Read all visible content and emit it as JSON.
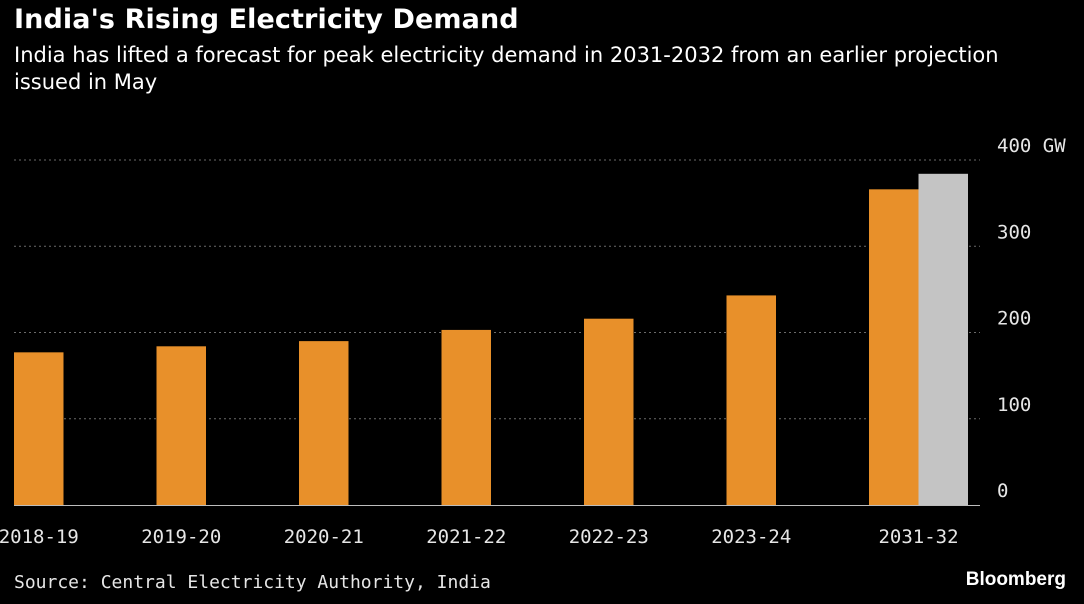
{
  "header": {
    "title": "India's Rising Electricity Demand",
    "subtitle": "India has lifted a forecast for peak electricity demand in 2031-2032 from an earlier projection issued in May"
  },
  "footer": {
    "source": "Source: Central Electricity Authority, India",
    "brand": "Bloomberg"
  },
  "chart_data": {
    "type": "bar",
    "title": "India's Rising Electricity Demand",
    "subtitle": "India has lifted a forecast for peak electricity demand in 2031-2032 from an earlier projection issued in May",
    "xlabel": "",
    "ylabel": "",
    "unit": "GW",
    "ylim": [
      0,
      400
    ],
    "yticks": [
      0,
      100,
      200,
      300,
      400
    ],
    "ytick_labels": [
      "0",
      "100",
      "200",
      "300",
      "400 GW"
    ],
    "y_axis_side": "right",
    "grid": true,
    "legend": "none",
    "categories": [
      "2018-19",
      "2019-20",
      "2020-21",
      "2021-22",
      "2022-23",
      "2023-24",
      "2031-32"
    ],
    "series": [
      {
        "values": [
          177,
          184,
          190,
          203,
          216,
          243,
          366
        ],
        "color": "#e8902a"
      },
      {
        "values": [
          null,
          null,
          null,
          null,
          null,
          null,
          384
        ],
        "color": "#c4c4c4"
      }
    ]
  }
}
